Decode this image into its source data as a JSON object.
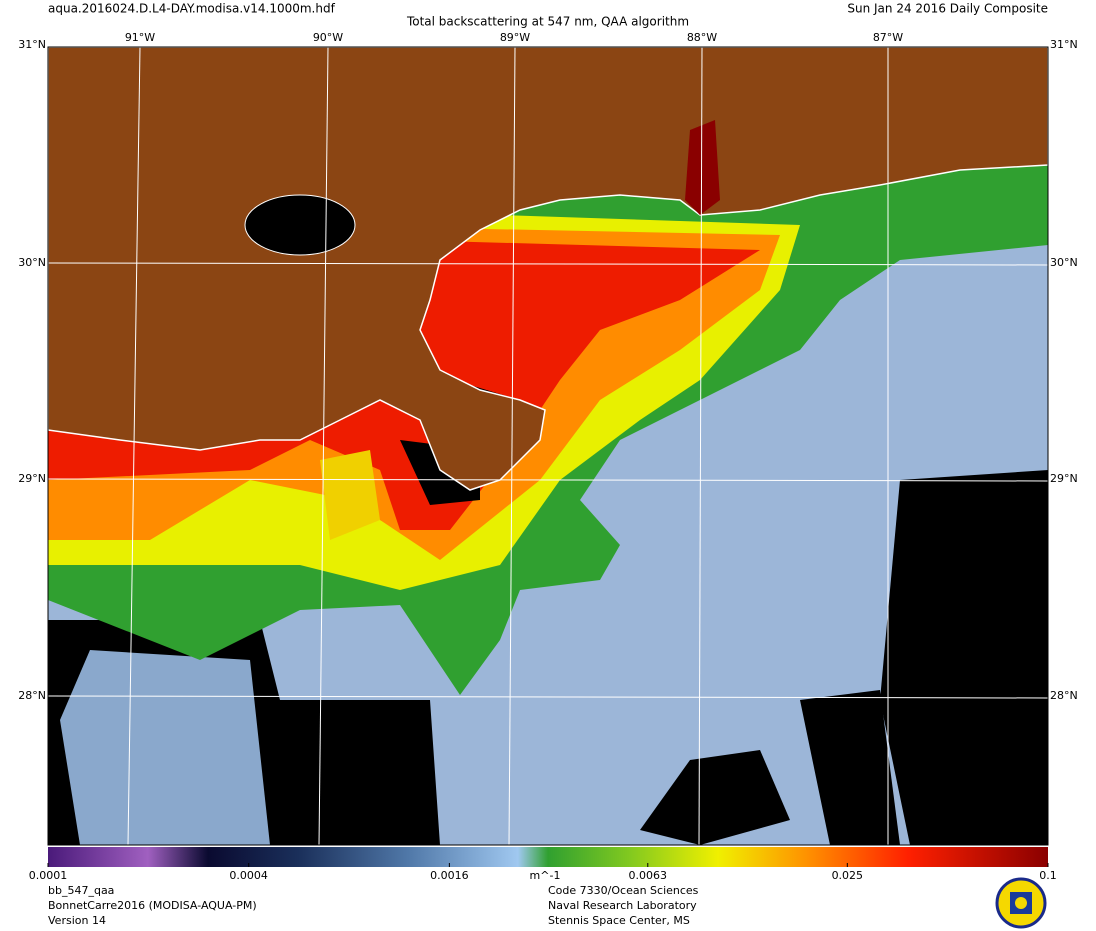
{
  "header": {
    "file": "aqua.2016024.D.L4-DAY.modisa.v14.1000m.hdf",
    "title": "Total backscattering at 547 nm, QAA algorithm",
    "date": "Sun Jan 24 2016 Daily Composite"
  },
  "map": {
    "lon_labels": [
      "91°W",
      "90°W",
      "89°W",
      "88°W",
      "87°W"
    ],
    "lat_labels": [
      "31°N",
      "30°N",
      "29°N",
      "28°N"
    ]
  },
  "colorbar": {
    "scale": "log",
    "ticks": [
      0.0001,
      0.0004,
      0.0016,
      0.0063,
      0.025,
      0.1
    ],
    "unit": "m^-1"
  },
  "footer": {
    "product": [
      "bb_547_qaa",
      "BonnetCarre2016 (MODISA-AQUA-PM)",
      "Version 14"
    ],
    "credit": [
      "Code 7330/Ocean Sciences",
      "Naval Research Laboratory",
      "Stennis Space Center, MS"
    ]
  }
}
